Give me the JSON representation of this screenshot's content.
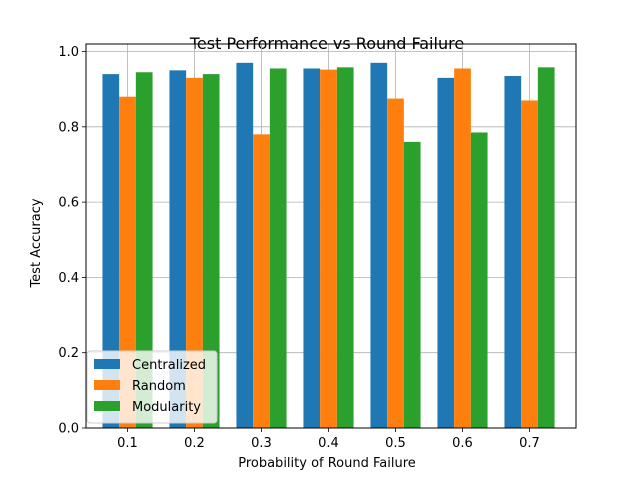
{
  "chart_data": {
    "type": "bar",
    "title": "Test Performance vs Round Failure",
    "xlabel": "Probability of Round Failure",
    "ylabel": "Test Accuracy",
    "categories": [
      "0.1",
      "0.2",
      "0.3",
      "0.4",
      "0.5",
      "0.6",
      "0.7"
    ],
    "ylim": [
      0,
      1.02
    ],
    "yticks": [
      "0.0",
      "0.2",
      "0.4",
      "0.6",
      "0.8",
      "1.0"
    ],
    "grid": true,
    "legend_position": "lower-left",
    "series": [
      {
        "name": "Centralized",
        "color": "#1f77b4",
        "values": [
          0.94,
          0.95,
          0.97,
          0.955,
          0.97,
          0.93,
          0.935
        ]
      },
      {
        "name": "Random",
        "color": "#ff7f0e",
        "values": [
          0.88,
          0.93,
          0.78,
          0.952,
          0.875,
          0.955,
          0.87
        ]
      },
      {
        "name": "Modularity",
        "color": "#2ca02c",
        "values": [
          0.945,
          0.94,
          0.955,
          0.958,
          0.76,
          0.785,
          0.958
        ]
      }
    ]
  }
}
